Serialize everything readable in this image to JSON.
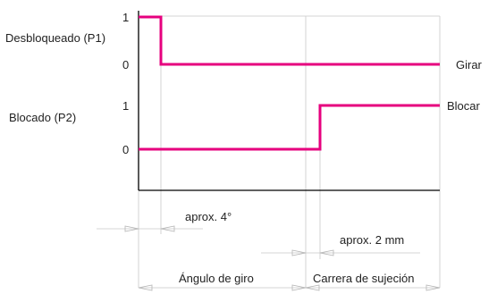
{
  "signals": {
    "p1": {
      "label": "Desbloqueado (P1)",
      "high_value": "1",
      "low_value": "0",
      "end_label": "Girar",
      "transition": "aprox. 4°"
    },
    "p2": {
      "label": "Blocado (P2)",
      "high_value": "1",
      "low_value": "0",
      "end_label": "Blocar",
      "transition": "aprox. 2 mm"
    }
  },
  "phases": {
    "rotation": "Ángulo de giro",
    "clamping": "Carrera de sujeción"
  },
  "colors": {
    "signal": "#e6007e",
    "axis": "#000000",
    "guide": "#c8c8c8",
    "text": "#222222"
  }
}
